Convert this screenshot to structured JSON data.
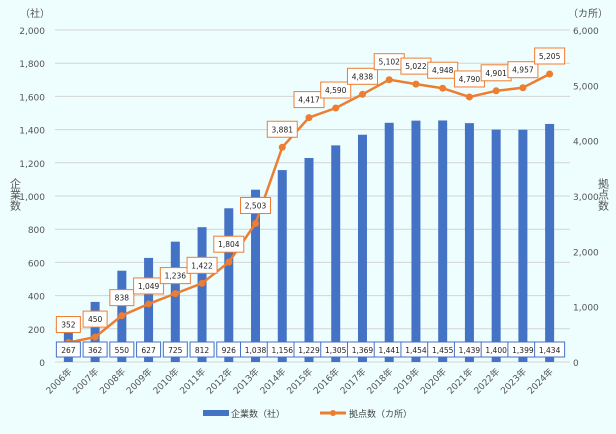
{
  "chart_data": {
    "type": "bar+line",
    "categories": [
      "2006年",
      "2007年",
      "2008年",
      "2009年",
      "2010年",
      "2011年",
      "2012年",
      "2013年",
      "2014年",
      "2015年",
      "2016年",
      "2017年",
      "2018年",
      "2019年",
      "2020年",
      "2021年",
      "2022年",
      "2023年",
      "2024年"
    ],
    "series": [
      {
        "name": "企業数（社）",
        "type": "bar",
        "axis": "left",
        "color": "#4472c4",
        "values": [
          267,
          362,
          550,
          627,
          725,
          812,
          926,
          1038,
          1156,
          1229,
          1305,
          1369,
          1441,
          1454,
          1455,
          1439,
          1400,
          1399,
          1434
        ],
        "labels": [
          "267",
          "362",
          "550",
          "627",
          "725",
          "812",
          "926",
          "1,038",
          "1,156",
          "1,229",
          "1,305",
          "1,369",
          "1,441",
          "1,454",
          "1,455",
          "1,439",
          "1,400",
          "1,399",
          "1,434"
        ]
      },
      {
        "name": "拠点数（カ所）",
        "type": "line",
        "axis": "right",
        "color": "#ed7d31",
        "values": [
          352,
          450,
          838,
          1049,
          1236,
          1422,
          1804,
          2503,
          3881,
          4417,
          4590,
          4838,
          5102,
          5022,
          4948,
          4790,
          4901,
          4957,
          5205
        ],
        "labels": [
          "352",
          "450",
          "838",
          "1,049",
          "1,236",
          "1,422",
          "1,804",
          "2,503",
          "3,881",
          "4,417",
          "4,590",
          "4,838",
          "5,102",
          "5,022",
          "4,948",
          "4,790",
          "4,901",
          "4,957",
          "5,205"
        ]
      }
    ],
    "left_axis": {
      "title": "企業数",
      "unit": "（社）",
      "ylim": [
        0,
        2000
      ],
      "ticks": [
        0,
        200,
        400,
        600,
        800,
        1000,
        1200,
        1400,
        1600,
        1800,
        2000
      ],
      "tick_labels": [
        "0",
        "200",
        "400",
        "600",
        "800",
        "1,000",
        "1,200",
        "1,400",
        "1,600",
        "1,800",
        "2,000"
      ]
    },
    "right_axis": {
      "title": "拠点数",
      "unit": "（カ所）",
      "ylim": [
        0,
        6000
      ],
      "ticks": [
        0,
        1000,
        2000,
        3000,
        4000,
        5000,
        6000
      ],
      "tick_labels": [
        "0",
        "1,000",
        "2,000",
        "3,000",
        "4,000",
        "5,000",
        "6,000"
      ]
    },
    "grid": true,
    "legend": "bottom"
  }
}
